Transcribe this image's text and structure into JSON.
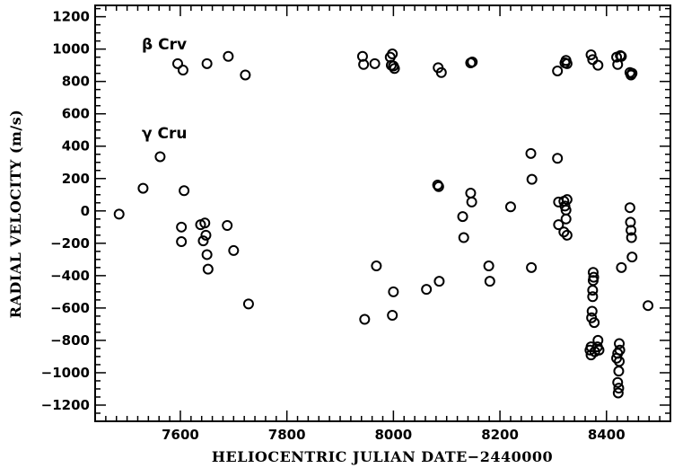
{
  "chart_data": {
    "type": "scatter",
    "title": "",
    "xlabel": "HELIOCENTRIC JULIAN DATE−2440000",
    "ylabel": "RADIAL VELOCITY (m/s)",
    "xlim": [
      7440,
      8520
    ],
    "ylim": [
      -1300,
      1270
    ],
    "xticks": [
      7600,
      7800,
      8000,
      8200,
      8400
    ],
    "yticks": [
      -1200,
      -1000,
      -800,
      -600,
      -400,
      -200,
      0,
      200,
      400,
      600,
      800,
      1000,
      1200
    ],
    "xtick_labels": [
      "7600",
      "7800",
      "8000",
      "8200",
      "8400"
    ],
    "ytick_labels": [
      "−1200",
      "−1000",
      "−800",
      "−600",
      "−400",
      "−200",
      "0",
      "200",
      "400",
      "600",
      "800",
      "1000",
      "1200"
    ],
    "grid": false,
    "marker": "open-circle",
    "annotations": [
      {
        "text": "β Crv",
        "x": 7530,
        "y": 1000
      },
      {
        "text": "γ Cru",
        "x": 7530,
        "y": 480
      }
    ],
    "series": [
      {
        "points": [
          [
            7595,
            910
          ],
          [
            7605,
            870
          ],
          [
            7650,
            910
          ],
          [
            7690,
            955
          ],
          [
            7722,
            840
          ],
          [
            7942,
            955
          ],
          [
            7944,
            905
          ],
          [
            7965,
            910
          ],
          [
            7994,
            950
          ],
          [
            7996,
            900
          ],
          [
            7998,
            970
          ],
          [
            8000,
            895
          ],
          [
            8002,
            880
          ],
          [
            8084,
            885
          ],
          [
            8090,
            855
          ],
          [
            8145,
            915
          ],
          [
            8148,
            920
          ],
          [
            8308,
            865
          ],
          [
            8322,
            915
          ],
          [
            8326,
            910
          ],
          [
            8324,
            930
          ],
          [
            8371,
            965
          ],
          [
            8374,
            935
          ],
          [
            8384,
            900
          ],
          [
            8419,
            950
          ],
          [
            8421,
            905
          ],
          [
            8426,
            960
          ],
          [
            8428,
            955
          ],
          [
            8444,
            855
          ],
          [
            8446,
            840
          ],
          [
            8448,
            850
          ]
        ]
      },
      {
        "points": [
          [
            7485,
            -20
          ],
          [
            7530,
            140
          ],
          [
            7562,
            335
          ],
          [
            7602,
            -100
          ],
          [
            7602,
            -190
          ],
          [
            7607,
            125
          ],
          [
            7638,
            -85
          ],
          [
            7643,
            -185
          ],
          [
            7646,
            -75
          ],
          [
            7648,
            -150
          ],
          [
            7650,
            -270
          ],
          [
            7652,
            -360
          ],
          [
            7688,
            -90
          ],
          [
            7700,
            -245
          ],
          [
            7728,
            -575
          ],
          [
            7946,
            -670
          ],
          [
            7968,
            -340
          ],
          [
            7998,
            -645
          ],
          [
            8000,
            -500
          ],
          [
            8062,
            -485
          ],
          [
            8083,
            160
          ],
          [
            8085,
            150
          ],
          [
            8086,
            -435
          ],
          [
            8130,
            -35
          ],
          [
            8132,
            -165
          ],
          [
            8145,
            110
          ],
          [
            8147,
            55
          ],
          [
            8179,
            -340
          ],
          [
            8181,
            -435
          ],
          [
            8220,
            25
          ],
          [
            8258,
            355
          ],
          [
            8260,
            195
          ],
          [
            8259,
            -350
          ],
          [
            8308,
            325
          ],
          [
            8310,
            55
          ],
          [
            8310,
            -85
          ],
          [
            8320,
            60
          ],
          [
            8322,
            30
          ],
          [
            8324,
            5
          ],
          [
            8324,
            -50
          ],
          [
            8326,
            -150
          ],
          [
            8326,
            70
          ],
          [
            8320,
            -130
          ],
          [
            8369,
            -860
          ],
          [
            8371,
            -840
          ],
          [
            8371,
            -890
          ],
          [
            8372,
            -660
          ],
          [
            8373,
            -620
          ],
          [
            8374,
            -530
          ],
          [
            8374,
            -490
          ],
          [
            8375,
            -430
          ],
          [
            8375,
            -380
          ],
          [
            8376,
            -410
          ],
          [
            8377,
            -690
          ],
          [
            8378,
            -870
          ],
          [
            8383,
            -840
          ],
          [
            8384,
            -800
          ],
          [
            8386,
            -860
          ],
          [
            8419,
            -910
          ],
          [
            8421,
            -880
          ],
          [
            8421,
            -1060
          ],
          [
            8422,
            -1125
          ],
          [
            8423,
            -1095
          ],
          [
            8423,
            -990
          ],
          [
            8424,
            -930
          ],
          [
            8424,
            -820
          ],
          [
            8425,
            -860
          ],
          [
            8428,
            -350
          ],
          [
            8444,
            20
          ],
          [
            8445,
            -70
          ],
          [
            8446,
            -120
          ],
          [
            8447,
            -165
          ],
          [
            8448,
            -285
          ],
          [
            8478,
            -585
          ]
        ]
      }
    ]
  }
}
